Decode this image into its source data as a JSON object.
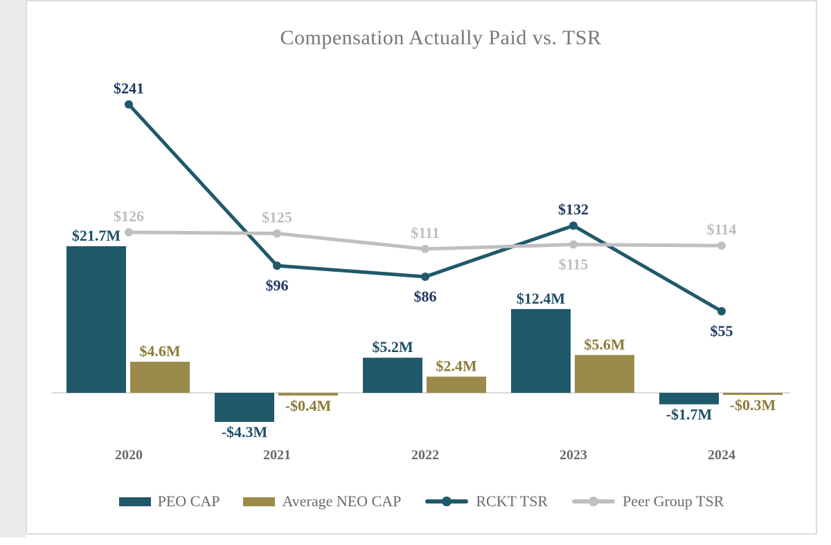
{
  "page": {
    "background_strip_color": "#EBEBEB",
    "panel_border_color": "#DCDCDC",
    "axis_line_color": "#D9D9D9"
  },
  "chart_data": {
    "type": "combo",
    "title": "Compensation Actually Paid vs. TSR",
    "categories": [
      "2020",
      "2021",
      "2022",
      "2023",
      "2024"
    ],
    "bar_series": [
      {
        "name": "PEO CAP",
        "color": "#20596A",
        "label_color": "#1B4F66",
        "values": [
          21.7,
          -4.3,
          5.2,
          12.4,
          -1.7
        ],
        "labels": [
          "$21.7M",
          "-$4.3M",
          "$5.2M",
          "$12.4M",
          "-$1.7M"
        ]
      },
      {
        "name": "Average NEO CAP",
        "color": "#9A8B4B",
        "label_color": "#8C7B39",
        "values": [
          4.6,
          -0.4,
          2.4,
          5.6,
          -0.3
        ],
        "labels": [
          "$4.6M",
          "-$0.4M",
          "$2.4M",
          "$5.6M",
          "-$0.3M"
        ]
      }
    ],
    "line_series": [
      {
        "name": "RCKT TSR",
        "color": "#20596A",
        "label_color": "#1F3864",
        "values": [
          241,
          96,
          86,
          132,
          55
        ],
        "labels": [
          "$241",
          "$96",
          "$86",
          "$132",
          "$55"
        ],
        "label_pos": [
          "above",
          "below",
          "below",
          "above",
          "below"
        ]
      },
      {
        "name": "Peer Group TSR",
        "color": "#BFBFBF",
        "label_color": "#BDBDBD",
        "values": [
          126,
          125,
          111,
          115,
          114
        ],
        "labels": [
          "$126",
          "$125",
          "$111",
          "$115",
          "$114"
        ],
        "label_pos": [
          "above",
          "above",
          "above",
          "below",
          "above"
        ]
      }
    ],
    "legend": [
      {
        "label": "PEO CAP",
        "marker": "bar",
        "color": "#20596A"
      },
      {
        "label": "Average NEO CAP",
        "marker": "bar",
        "color": "#9A8B4B"
      },
      {
        "label": "RCKT TSR",
        "marker": "line-dot",
        "color": "#20596A"
      },
      {
        "label": "Peer Group TSR",
        "marker": "line-dot",
        "color": "#BFBFBF"
      }
    ],
    "layout_hints": {
      "grid": false,
      "value_axis_ticks_visible": false,
      "legend_position": "bottom",
      "cap_axis_range_hint": [
        -5,
        25
      ],
      "tsr_axis_range_hint": [
        40,
        250
      ]
    }
  }
}
